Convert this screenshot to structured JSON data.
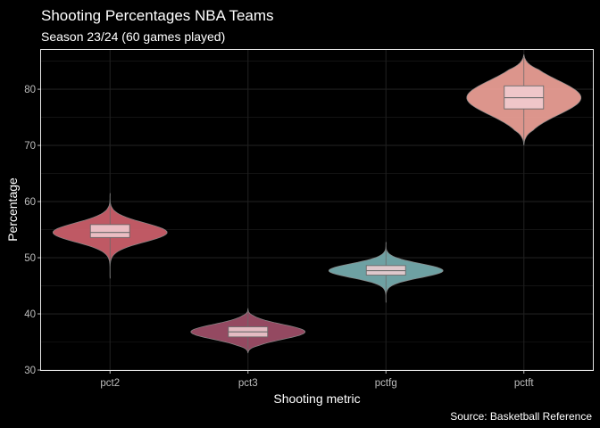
{
  "chart_data": {
    "type": "violin",
    "title": "Shooting Percentages NBA Teams",
    "subtitle": "Season 23/24 (60 games played)",
    "xlabel": "Shooting metric",
    "ylabel": "Percentage",
    "caption": "Source: Basketball Reference",
    "ylim": [
      30,
      87
    ],
    "yticks": [
      30,
      40,
      50,
      60,
      70,
      80
    ],
    "grid": true,
    "legend": "none",
    "categories": [
      "pct2",
      "pct3",
      "pctfg",
      "pctft"
    ],
    "series": [
      {
        "category": "pct2",
        "color": "#d4636f",
        "min": 46.3,
        "q1": 53.6,
        "median": 54.5,
        "q3": 55.9,
        "max": 61.5
      },
      {
        "category": "pct3",
        "color": "#a4516b",
        "min": 33.0,
        "q1": 35.9,
        "median": 36.8,
        "q3": 37.7,
        "max": 41.0
      },
      {
        "category": "pctfg",
        "color": "#7ab2b5",
        "min": 42.0,
        "q1": 46.9,
        "median": 47.7,
        "q3": 48.6,
        "max": 52.8
      },
      {
        "category": "pctft",
        "color": "#f4a59b",
        "min": 70.0,
        "q1": 76.5,
        "median": 78.5,
        "q3": 80.6,
        "max": 86.2
      }
    ],
    "colors": {
      "background": "#000000",
      "grid": "#1f1f1f",
      "panel_border": "#e6e6e6",
      "box_fill": "#f2cfd3",
      "box_stroke": "#6a6a6a"
    }
  }
}
